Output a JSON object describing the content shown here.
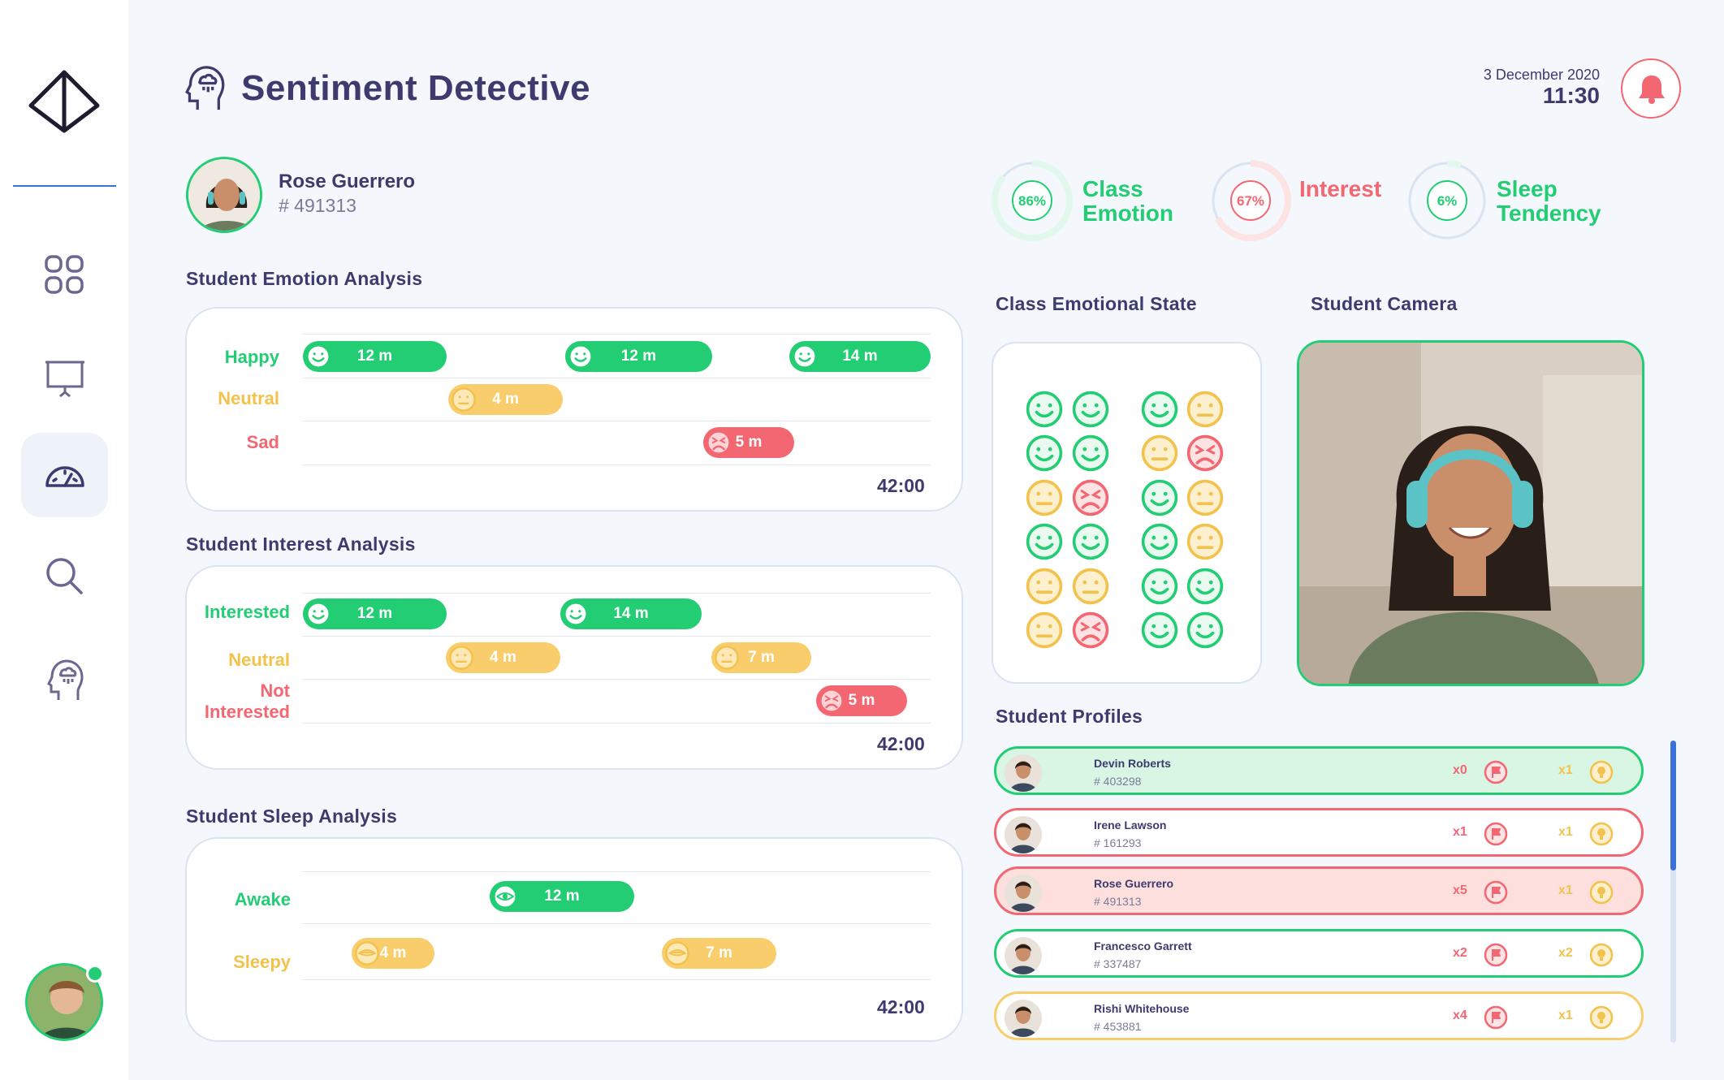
{
  "app": {
    "title": "Sentiment Detective",
    "date": "3 December 2020",
    "time": "11:30"
  },
  "student": {
    "name": "Rose Guerrero",
    "id": "# 491313"
  },
  "stats": [
    {
      "label1": "Class",
      "label2": "Emotion",
      "pct": "86%",
      "value": 86,
      "color": "#22cd73"
    },
    {
      "label1": "Interest",
      "label2": "",
      "pct": "67%",
      "value": 67,
      "color": "#f26771"
    },
    {
      "label1": "Sleep",
      "label2": "Tendency",
      "pct": "6%",
      "value": 6,
      "color": "#22cd73"
    }
  ],
  "sections": {
    "emotion": "Student Emotion Analysis",
    "interest": "Student Interest Analysis",
    "sleep": "Student Sleep Analysis",
    "class_state": "Class Emotional State",
    "camera": "Student Camera",
    "profiles": "Student Profiles"
  },
  "emotion": {
    "labels": [
      "Happy",
      "Neutral",
      "Sad"
    ],
    "total": "42:00",
    "bars": [
      "12 m",
      "12 m",
      "14 m",
      "4 m",
      "5 m"
    ]
  },
  "interest": {
    "labels": [
      "Interested",
      "Neutral",
      "Not",
      "Interested"
    ],
    "total": "42:00",
    "bars": [
      "12 m",
      "14 m",
      "4 m",
      "7 m",
      "5 m"
    ]
  },
  "sleep": {
    "labels": [
      "Awake",
      "Sleepy"
    ],
    "total": "42:00",
    "bars": [
      "12 m",
      "4 m",
      "7 m"
    ]
  },
  "class_faces": [
    [
      "happy",
      "happy",
      "happy",
      "neutral"
    ],
    [
      "happy",
      "happy",
      "neutral",
      "sad"
    ],
    [
      "neutral",
      "sad",
      "happy",
      "neutral"
    ],
    [
      "happy",
      "happy",
      "happy",
      "neutral"
    ],
    [
      "neutral",
      "neutral",
      "happy",
      "happy"
    ],
    [
      "neutral",
      "sad",
      "happy",
      "happy"
    ]
  ],
  "profiles": [
    {
      "name": "Devin Roberts",
      "id": "# 403298",
      "flags": "x0",
      "bulbs": "x1",
      "status": "selected",
      "border": "#22cd73",
      "bg": "#d9f6e5"
    },
    {
      "name": "Irene Lawson",
      "id": "# 161293",
      "flags": "x1",
      "bulbs": "x1",
      "status": "alert",
      "border": "#f26771",
      "bg": "#ffffff"
    },
    {
      "name": "Rose Guerrero",
      "id": "# 491313",
      "flags": "x5",
      "bulbs": "x1",
      "status": "alert-selected",
      "border": "#f26771",
      "bg": "#fde0dd"
    },
    {
      "name": "Francesco Garrett",
      "id": "# 337487",
      "flags": "x2",
      "bulbs": "x2",
      "status": "ok",
      "border": "#22cd73",
      "bg": "#ffffff"
    },
    {
      "name": "Rishi Whitehouse",
      "id": "# 453881",
      "flags": "x4",
      "bulbs": "x1",
      "status": "warn",
      "border": "#f9cd6b",
      "bg": "#ffffff"
    }
  ],
  "icons": [
    "logo-icon",
    "dashboard-icon",
    "presentation-icon",
    "speedometer-icon",
    "search-icon",
    "head-icon",
    "bell-icon",
    "flag-icon",
    "bulb-icon"
  ]
}
